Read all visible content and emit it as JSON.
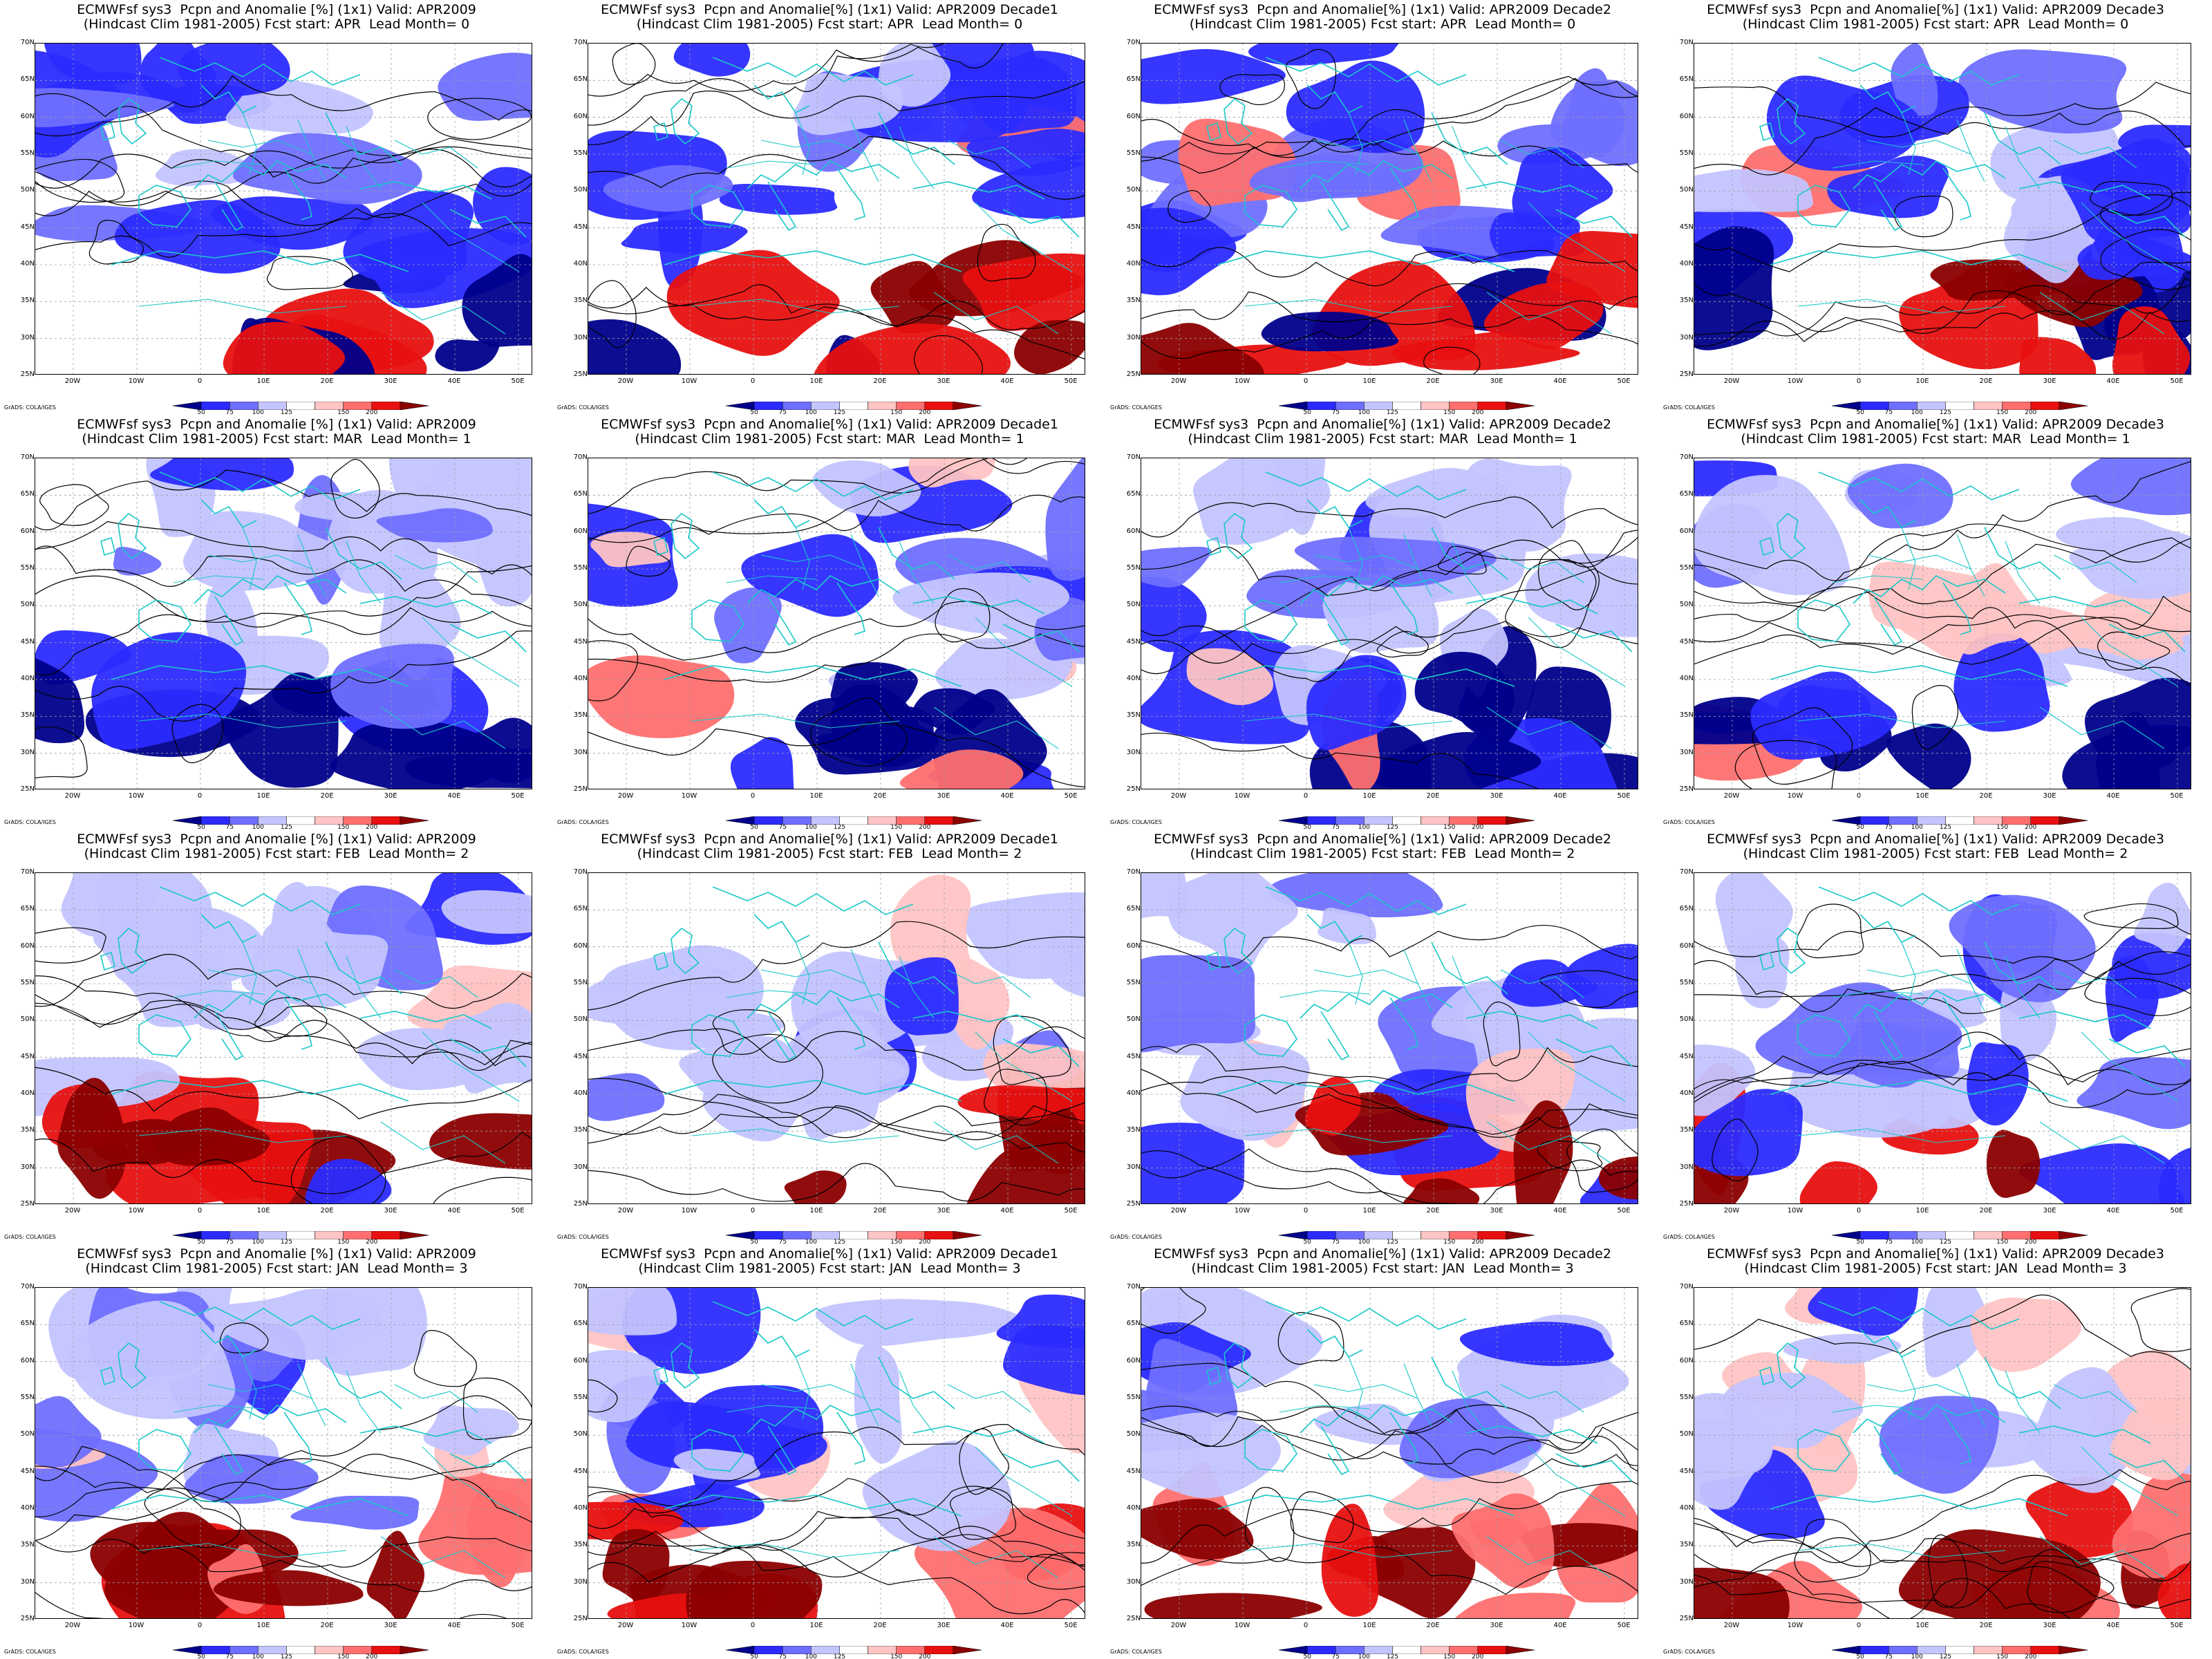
{
  "common": {
    "lat_labels": [
      "70N",
      "65N",
      "60N",
      "55N",
      "50N",
      "45N",
      "40N",
      "35N",
      "30N",
      "25N"
    ],
    "lon_labels": [
      "20W",
      "10W",
      "0",
      "10E",
      "20E",
      "30E",
      "40E",
      "50E"
    ],
    "colorbar": {
      "labels": [
        "50",
        "75",
        "100",
        "125",
        "150",
        "200"
      ],
      "colors": [
        "#00008b",
        "#2b2bff",
        "#6f6fff",
        "#c4c4ff",
        "#ffffff",
        "#ffc4c4",
        "#ff6f6f",
        "#e81010",
        "#8b0000"
      ]
    },
    "credit": "GrADS: COLA/IGES",
    "colors": {
      "coast": "#19c8c8",
      "contour": "#000000",
      "grid": "#9aa0a6"
    }
  },
  "panels": [
    {
      "title_line1": "ECMWFsf sys3  Pcpn and Anomalie [%] (1x1) Valid: APR2009",
      "title_line2": "(Hindcast Clim 1981-2005) Fcst start: APR  Lead Month= 0"
    },
    {
      "title_line1": "ECMWFsf sys3  Pcpn and Anomalie[%] (1x1) Valid: APR2009 Decade1",
      "title_line2": "(Hindcast Clim 1981-2005) Fcst start: APR  Lead Month= 0"
    },
    {
      "title_line1": "ECMWFsf sys3  Pcpn and Anomalie[%] (1x1) Valid: APR2009 Decade2",
      "title_line2": "(Hindcast Clim 1981-2005) Fcst start: APR  Lead Month= 0"
    },
    {
      "title_line1": "ECMWFsf sys3  Pcpn and Anomalie[%] (1x1) Valid: APR2009 Decade3",
      "title_line2": "(Hindcast Clim 1981-2005) Fcst start: APR  Lead Month= 0"
    },
    {
      "title_line1": "ECMWFsf sys3  Pcpn and Anomalie [%] (1x1) Valid: APR2009",
      "title_line2": "(Hindcast Clim 1981-2005) Fcst start: MAR  Lead Month= 1"
    },
    {
      "title_line1": "ECMWFsf sys3  Pcpn and Anomalie[%] (1x1) Valid: APR2009 Decade1",
      "title_line2": "(Hindcast Clim 1981-2005) Fcst start: MAR  Lead Month= 1"
    },
    {
      "title_line1": "ECMWFsf sys3  Pcpn and Anomalie[%] (1x1) Valid: APR2009 Decade2",
      "title_line2": "(Hindcast Clim 1981-2005) Fcst start: MAR  Lead Month= 1"
    },
    {
      "title_line1": "ECMWFsf sys3  Pcpn and Anomalie[%] (1x1) Valid: APR2009 Decade3",
      "title_line2": "(Hindcast Clim 1981-2005) Fcst start: MAR  Lead Month= 1"
    },
    {
      "title_line1": "ECMWFsf sys3  Pcpn and Anomalie [%] (1x1) Valid: APR2009",
      "title_line2": "(Hindcast Clim 1981-2005) Fcst start: FEB  Lead Month= 2"
    },
    {
      "title_line1": "ECMWFsf sys3  Pcpn and Anomalie[%] (1x1) Valid: APR2009 Decade1",
      "title_line2": "(Hindcast Clim 1981-2005) Fcst start: FEB  Lead Month= 2"
    },
    {
      "title_line1": "ECMWFsf sys3  Pcpn and Anomalie[%] (1x1) Valid: APR2009 Decade2",
      "title_line2": "(Hindcast Clim 1981-2005) Fcst start: FEB  Lead Month= 2"
    },
    {
      "title_line1": "ECMWFsf sys3  Pcpn and Anomalie[%] (1x1) Valid: APR2009 Decade3",
      "title_line2": "(Hindcast Clim 1981-2005) Fcst start: FEB  Lead Month= 2"
    },
    {
      "title_line1": "ECMWFsf sys3  Pcpn and Anomalie [%] (1x1) Valid: APR2009",
      "title_line2": "(Hindcast Clim 1981-2005) Fcst start: JAN  Lead Month= 3"
    },
    {
      "title_line1": "ECMWFsf sys3  Pcpn and Anomalie[%] (1x1) Valid: APR2009 Decade1",
      "title_line2": "(Hindcast Clim 1981-2005) Fcst start: JAN  Lead Month= 3"
    },
    {
      "title_line1": "ECMWFsf sys3  Pcpn and Anomalie[%] (1x1) Valid: APR2009 Decade2",
      "title_line2": "(Hindcast Clim 1981-2005) Fcst start: JAN  Lead Month= 3"
    },
    {
      "title_line1": "ECMWFsf sys3  Pcpn and Anomalie[%] (1x1) Valid: APR2009 Decade3",
      "title_line2": "(Hindcast Clim 1981-2005) Fcst start: JAN  Lead Month= 3"
    }
  ]
}
